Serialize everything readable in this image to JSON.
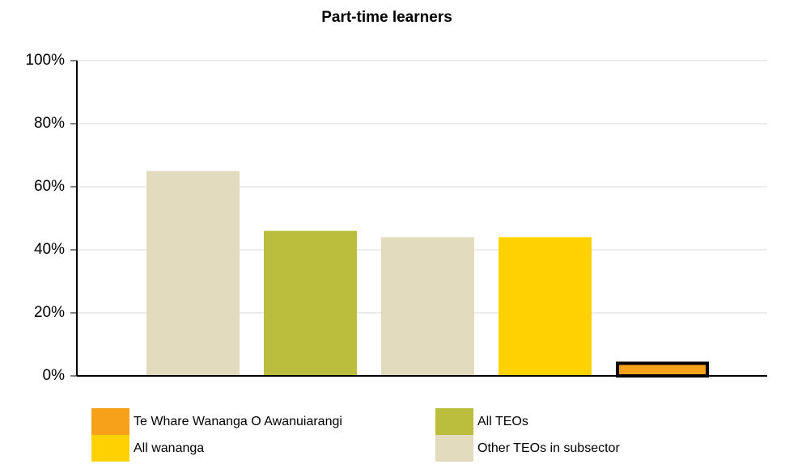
{
  "chart_data": {
    "type": "bar",
    "title": "Part-time learners",
    "categories": [
      null,
      null,
      null,
      null,
      null
    ],
    "values": [
      65,
      46,
      44,
      44,
      4
    ],
    "colors": [
      "#e3dbbd",
      "#bbbe3c",
      "#e3dbbd",
      "#ffd200",
      "#f7a11a"
    ],
    "highlight_index": 4,
    "ylim": [
      0,
      100
    ],
    "yticks": [
      {
        "value": 0,
        "label": "0%"
      },
      {
        "value": 20,
        "label": "20%"
      },
      {
        "value": 40,
        "label": "40%"
      },
      {
        "value": 60,
        "label": "60%"
      },
      {
        "value": 80,
        "label": "80%"
      },
      {
        "value": 100,
        "label": "100%"
      }
    ],
    "grid": true,
    "legend": [
      {
        "name": "Te Whare Wananga O Awanuiarangi",
        "color": "#f7a11a"
      },
      {
        "name": "All TEOs",
        "color": "#bbbe3c"
      },
      {
        "name": "All wananga",
        "color": "#ffd200"
      },
      {
        "name": "Other TEOs in subsector",
        "color": "#e3dbbd"
      }
    ]
  }
}
